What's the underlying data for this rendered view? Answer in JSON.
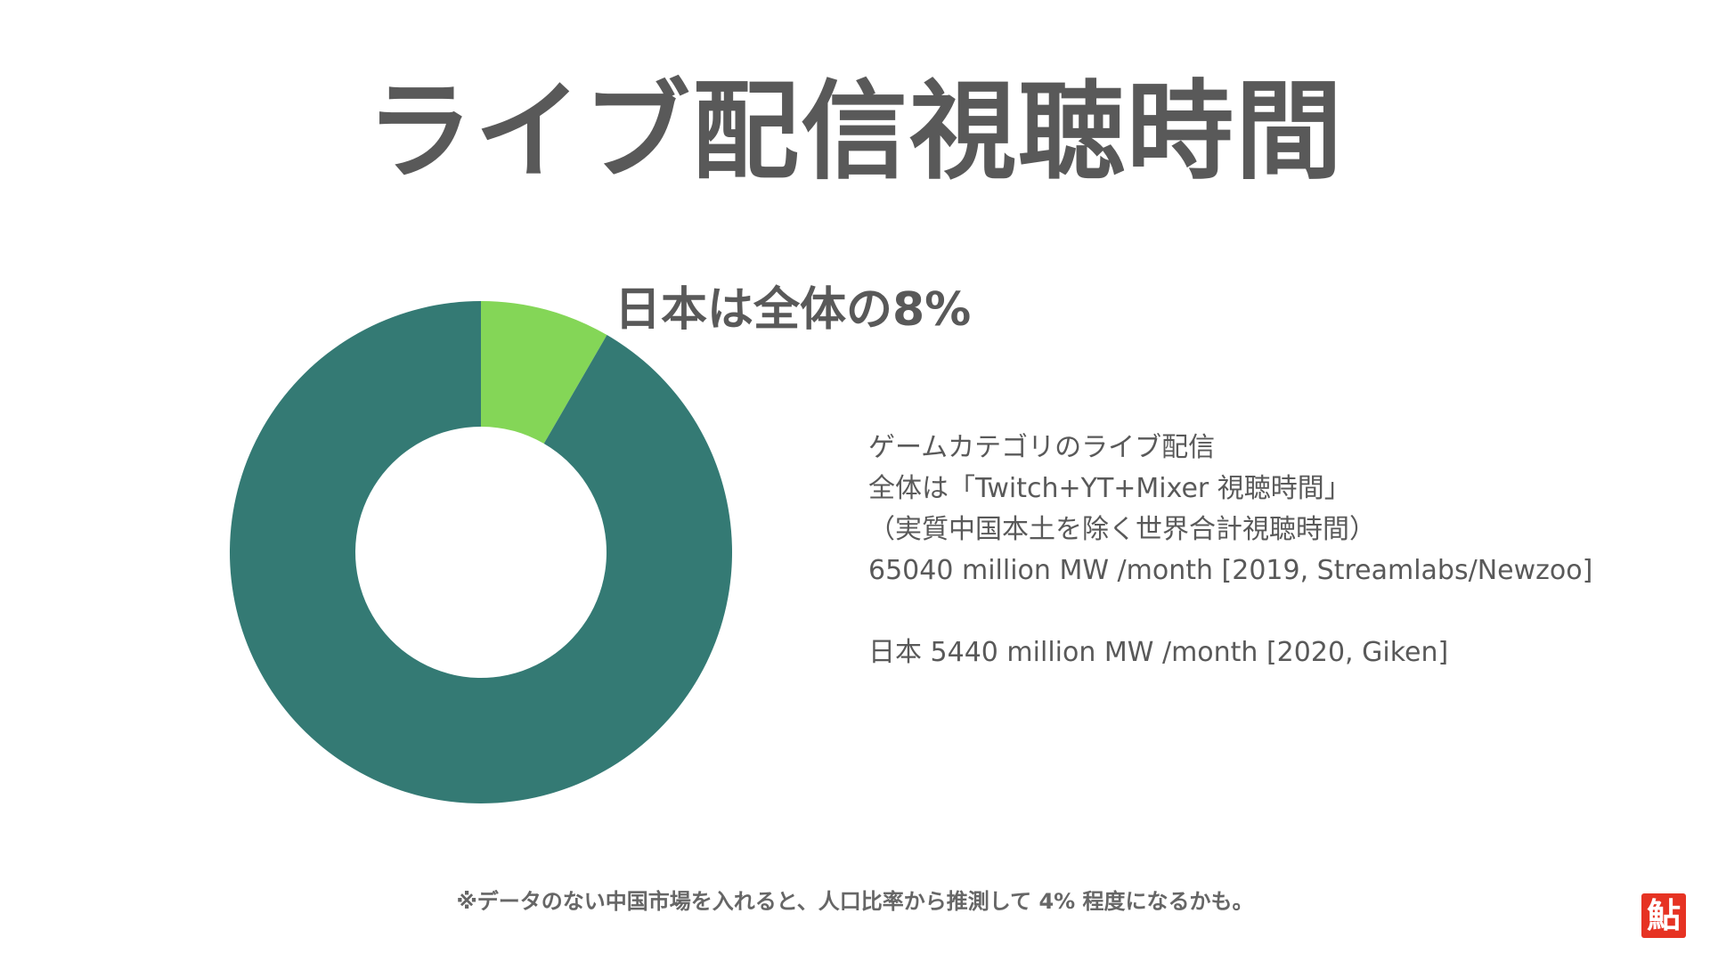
{
  "slide": {
    "title": "ライブ配信視聴時間",
    "headline": "日本は全体の8%",
    "notes": [
      "ゲームカテゴリのライブ配信",
      "全体は「Twitch+YT+Mixer 視聴時間」",
      "（実質中国本土を除く世界合計視聴時間）",
      "65040 million MW /month [2019, Streamlabs/Newzoo]",
      "",
      "日本 5440 million MW /month [2020, Giken]"
    ],
    "footnote": "※データのない中国市場を入れると、人口比率から推測して 4% 程度になるかも。",
    "logo_text": "鮎"
  },
  "chart_data": {
    "type": "pie",
    "donut": true,
    "title": "",
    "legend": "none",
    "slices": [
      {
        "value": 5440,
        "color": "#84d657"
      },
      {
        "value": 59600,
        "color": "#347a74"
      }
    ]
  }
}
